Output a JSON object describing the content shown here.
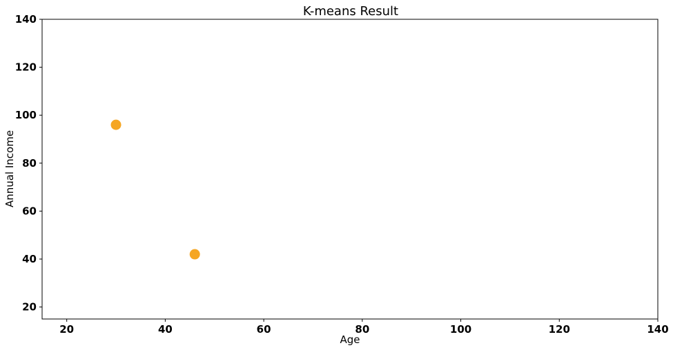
{
  "chart_data": {
    "type": "scatter",
    "title": "K-means Result",
    "xlabel": "Age",
    "ylabel": "Annual Income",
    "xlim": [
      15,
      140
    ],
    "ylim": [
      15,
      140
    ],
    "xticks": [
      20,
      40,
      60,
      80,
      100,
      120,
      140
    ],
    "yticks": [
      20,
      40,
      60,
      80,
      100,
      120,
      140
    ],
    "grid": false,
    "legend": "none",
    "series": [
      {
        "color": "#f5a623",
        "points": [
          {
            "x": 30,
            "y": 96
          },
          {
            "x": 46,
            "y": 42
          }
        ]
      }
    ]
  }
}
